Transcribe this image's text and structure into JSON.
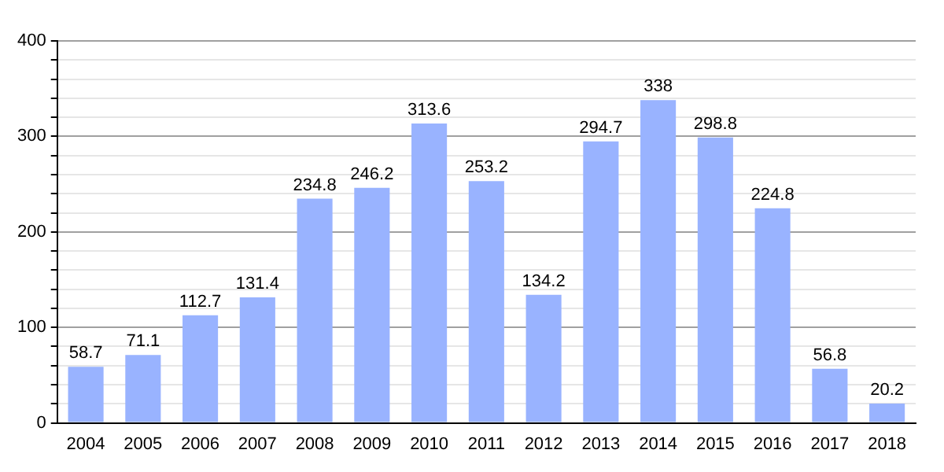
{
  "chart_data": {
    "type": "bar",
    "categories": [
      "2004",
      "2005",
      "2006",
      "2007",
      "2008",
      "2009",
      "2010",
      "2011",
      "2012",
      "2013",
      "2014",
      "2015",
      "2016",
      "2017",
      "2018"
    ],
    "values": [
      58.7,
      71.1,
      112.7,
      131.4,
      234.8,
      246.2,
      313.6,
      253.2,
      134.2,
      294.7,
      338,
      298.8,
      224.8,
      56.8,
      20.2
    ],
    "color": "#99b3ff",
    "ylim": [
      0,
      400
    ],
    "yticks": [
      0,
      {
        "value": 20,
        "label": null
      },
      {
        "value": 40,
        "label": null
      },
      {
        "value": 60,
        "label": null
      },
      {
        "value": 80,
        "label": null
      },
      100,
      {
        "value": 120,
        "label": null
      },
      {
        "value": 140,
        "label": null
      },
      {
        "value": 160,
        "label": null
      },
      {
        "value": 180,
        "label": null
      },
      200,
      {
        "value": 220,
        "label": null
      },
      {
        "value": 240,
        "label": null
      },
      {
        "value": 260,
        "label": null
      },
      {
        "value": 280,
        "label": null
      },
      300,
      {
        "value": 320,
        "label": null
      },
      {
        "value": 340,
        "label": null
      },
      {
        "value": 360,
        "label": null
      },
      {
        "value": 380,
        "label": null
      },
      400
    ],
    "grid": "y",
    "data_labels": true
  }
}
